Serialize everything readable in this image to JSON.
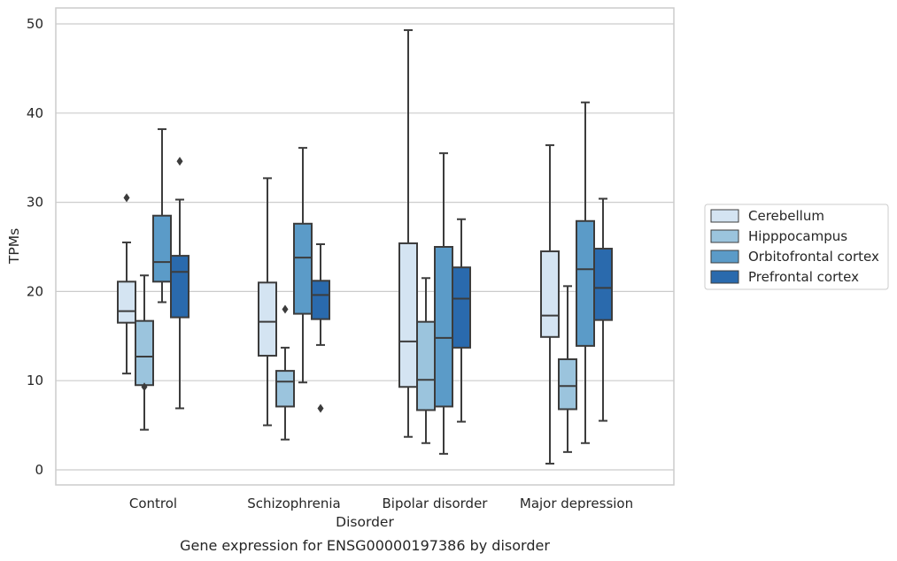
{
  "chart_data": {
    "type": "box",
    "caption": "Gene expression for ENSG00000197386 by disorder",
    "xlabel": "Disorder",
    "ylabel": "TPMs",
    "ylim": [
      -1.5,
      52
    ],
    "yticks": [
      0,
      10,
      20,
      30,
      40,
      50
    ],
    "grid": "horizontal",
    "legend_position": "right",
    "categories": [
      "Control",
      "Schizophrenia",
      "Bipolar disorder",
      "Major depression"
    ],
    "series": [
      {
        "name": "Cerebellum",
        "color": "#d4e4f2",
        "boxes": [
          {
            "whisker_low": 10.8,
            "q1": 16.5,
            "median": 17.8,
            "q3": 21.1,
            "whisker_high": 25.5,
            "outliers": [
              30.5
            ]
          },
          {
            "whisker_low": 5.0,
            "q1": 12.8,
            "median": 16.6,
            "q3": 21.0,
            "whisker_high": 32.7,
            "outliers": []
          },
          {
            "whisker_low": 3.7,
            "q1": 9.3,
            "median": 14.4,
            "q3": 25.4,
            "whisker_high": 49.3,
            "outliers": []
          },
          {
            "whisker_low": 0.7,
            "q1": 14.9,
            "median": 17.3,
            "q3": 24.5,
            "whisker_high": 36.4,
            "outliers": []
          }
        ]
      },
      {
        "name": "Hipppocampus",
        "color": "#9bc4dd",
        "boxes": [
          {
            "whisker_low": 4.5,
            "q1": 9.5,
            "median": 12.7,
            "q3": 16.7,
            "whisker_high": 21.8,
            "outliers": [
              9.3
            ]
          },
          {
            "whisker_low": 3.4,
            "q1": 7.1,
            "median": 9.9,
            "q3": 11.1,
            "whisker_high": 13.7,
            "outliers": [
              18.0
            ]
          },
          {
            "whisker_low": 3.0,
            "q1": 6.7,
            "median": 10.1,
            "q3": 16.6,
            "whisker_high": 21.5,
            "outliers": []
          },
          {
            "whisker_low": 2.0,
            "q1": 6.8,
            "median": 9.4,
            "q3": 12.4,
            "whisker_high": 20.6,
            "outliers": []
          }
        ]
      },
      {
        "name": "Orbitofrontal cortex",
        "color": "#5b9bc8",
        "boxes": [
          {
            "whisker_low": 18.8,
            "q1": 21.1,
            "median": 23.3,
            "q3": 28.5,
            "whisker_high": 38.2,
            "outliers": []
          },
          {
            "whisker_low": 9.8,
            "q1": 17.5,
            "median": 23.8,
            "q3": 27.6,
            "whisker_high": 36.1,
            "outliers": []
          },
          {
            "whisker_low": 1.8,
            "q1": 7.1,
            "median": 14.8,
            "q3": 25.0,
            "whisker_high": 35.5,
            "outliers": []
          },
          {
            "whisker_low": 3.0,
            "q1": 13.9,
            "median": 22.5,
            "q3": 27.9,
            "whisker_high": 41.2,
            "outliers": []
          }
        ]
      },
      {
        "name": "Prefrontal cortex",
        "color": "#2a6aad",
        "boxes": [
          {
            "whisker_low": 6.9,
            "q1": 17.1,
            "median": 22.2,
            "q3": 24.0,
            "whisker_high": 30.3,
            "outliers": [
              34.6
            ]
          },
          {
            "whisker_low": 14.0,
            "q1": 16.9,
            "median": 19.6,
            "q3": 21.2,
            "whisker_high": 25.3,
            "outliers": [
              6.9
            ]
          },
          {
            "whisker_low": 5.4,
            "q1": 13.7,
            "median": 19.2,
            "q3": 22.7,
            "whisker_high": 28.1,
            "outliers": []
          },
          {
            "whisker_low": 5.5,
            "q1": 16.8,
            "median": 20.4,
            "q3": 24.8,
            "whisker_high": 30.4,
            "outliers": []
          }
        ]
      }
    ]
  }
}
